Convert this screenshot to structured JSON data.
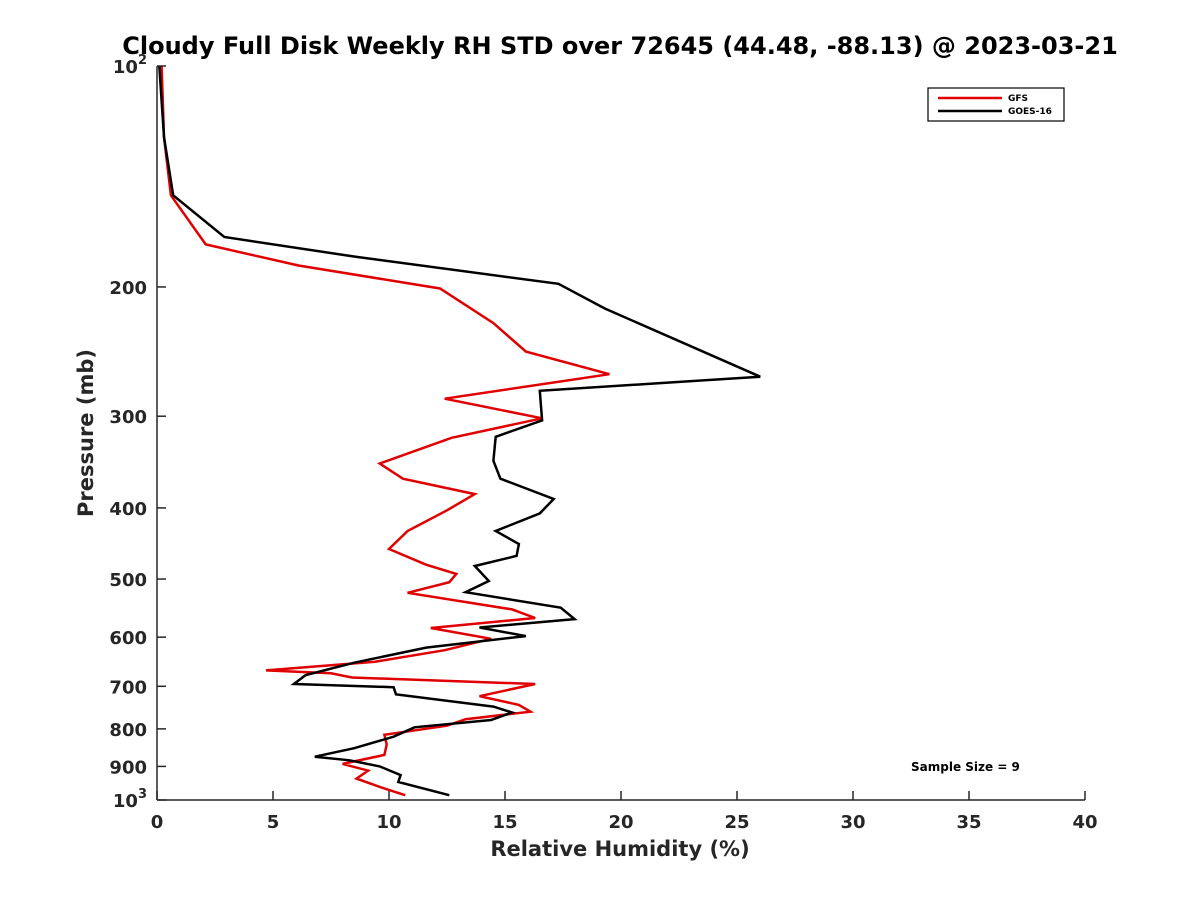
{
  "chart_data": {
    "type": "line",
    "title": "Cloudy Full Disk Weekly RH STD over 72645 (44.48, -88.13) @ 2023-03-21",
    "xlabel": "Relative Humidity (%)",
    "ylabel": "Pressure (mb)",
    "xlim": [
      0,
      40
    ],
    "ylim": [
      100,
      1000
    ],
    "y_scale": "log",
    "y_reversed": true,
    "x_ticks": [
      "0",
      "5",
      "10",
      "15",
      "20",
      "25",
      "30",
      "35",
      "40"
    ],
    "y_ticks": [
      {
        "value": 100,
        "base": "10",
        "exp": "2"
      },
      {
        "value": 200,
        "label": "200"
      },
      {
        "value": 300,
        "label": "300"
      },
      {
        "value": 400,
        "label": "400"
      },
      {
        "value": 500,
        "label": "500"
      },
      {
        "value": 600,
        "label": "600"
      },
      {
        "value": 700,
        "label": "700"
      },
      {
        "value": 800,
        "label": "800"
      },
      {
        "value": 900,
        "label": "900"
      },
      {
        "value": 1000,
        "base": "10",
        "exp": "3"
      }
    ],
    "legend_position": "top-right",
    "annotation": "Sample Size = 9",
    "series": [
      {
        "name": "GFS",
        "color": "#e00000",
        "points": [
          [
            0.2,
            100
          ],
          [
            0.3,
            125
          ],
          [
            0.6,
            150
          ],
          [
            2.1,
            175
          ],
          [
            6.1,
            187
          ],
          [
            12.2,
            201
          ],
          [
            14.5,
            224
          ],
          [
            15.9,
            245
          ],
          [
            19.5,
            263
          ],
          [
            12.4,
            284
          ],
          [
            16.6,
            302
          ],
          [
            12.7,
            321
          ],
          [
            9.6,
            348
          ],
          [
            10.6,
            365
          ],
          [
            13.7,
            383
          ],
          [
            12.5,
            403
          ],
          [
            10.8,
            430
          ],
          [
            10.0,
            455
          ],
          [
            11.6,
            478
          ],
          [
            12.9,
            492
          ],
          [
            12.6,
            505
          ],
          [
            10.8,
            522
          ],
          [
            15.3,
            550
          ],
          [
            16.3,
            565
          ],
          [
            11.8,
            583
          ],
          [
            14.4,
            603
          ],
          [
            12.4,
            625
          ],
          [
            9.4,
            648
          ],
          [
            4.7,
            666
          ],
          [
            7.5,
            672
          ],
          [
            8.4,
            681
          ],
          [
            16.3,
            695
          ],
          [
            13.9,
            722
          ],
          [
            15.6,
            742
          ],
          [
            16.1,
            758
          ],
          [
            13.3,
            776
          ],
          [
            12.5,
            792
          ],
          [
            9.8,
            815
          ],
          [
            9.9,
            840
          ],
          [
            9.8,
            868
          ],
          [
            8.0,
            893
          ],
          [
            9.1,
            912
          ],
          [
            8.6,
            935
          ],
          [
            9.7,
            962
          ],
          [
            10.7,
            985
          ]
        ]
      },
      {
        "name": "GOES-16",
        "color": "#000000",
        "points": [
          [
            0.1,
            100
          ],
          [
            0.3,
            125
          ],
          [
            0.7,
            150
          ],
          [
            2.9,
            171
          ],
          [
            8.6,
            182
          ],
          [
            17.3,
            198
          ],
          [
            19.3,
            214
          ],
          [
            26.0,
            265
          ],
          [
            16.5,
            277
          ],
          [
            16.6,
            304
          ],
          [
            14.6,
            320
          ],
          [
            14.5,
            345
          ],
          [
            14.8,
            365
          ],
          [
            17.1,
            389
          ],
          [
            16.5,
            407
          ],
          [
            14.6,
            430
          ],
          [
            15.6,
            448
          ],
          [
            15.5,
            465
          ],
          [
            13.7,
            480
          ],
          [
            14.3,
            503
          ],
          [
            13.3,
            521
          ],
          [
            17.4,
            547
          ],
          [
            18.0,
            567
          ],
          [
            13.9,
            582
          ],
          [
            15.9,
            598
          ],
          [
            11.6,
            620
          ],
          [
            8.5,
            650
          ],
          [
            6.4,
            676
          ],
          [
            5.9,
            695
          ],
          [
            10.2,
            702
          ],
          [
            10.3,
            718
          ],
          [
            14.5,
            746
          ],
          [
            15.3,
            760
          ],
          [
            14.4,
            778
          ],
          [
            11.1,
            796
          ],
          [
            10.2,
            820
          ],
          [
            8.5,
            850
          ],
          [
            6.8,
            873
          ],
          [
            8.3,
            883
          ],
          [
            9.6,
            900
          ],
          [
            10.5,
            925
          ],
          [
            10.4,
            945
          ],
          [
            12.6,
            985
          ]
        ]
      }
    ]
  }
}
